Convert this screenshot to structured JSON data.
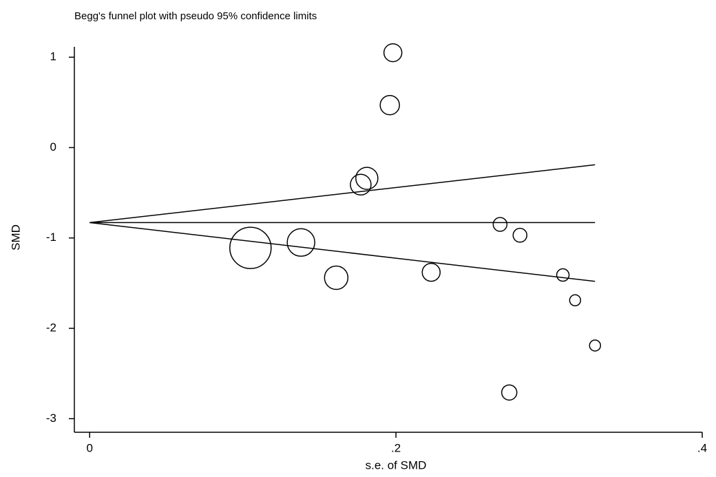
{
  "chart_data": {
    "type": "scatter",
    "title": "Begg's funnel plot with pseudo 95% confidence limits",
    "x_label": "s.e. of SMD",
    "y_label": "SMD",
    "xlim": [
      -0.01,
      0.4
    ],
    "ylim": [
      -3.15,
      1.1
    ],
    "xticks": [
      {
        "value": 0,
        "label": "0"
      },
      {
        "value": 0.2,
        "label": ".2"
      },
      {
        "value": 0.4,
        "label": ".4"
      }
    ],
    "yticks": [
      -3,
      -2,
      -1,
      0,
      1
    ],
    "color": "#000000",
    "series": [
      {
        "x": [
          0.198,
          0.196,
          0.181,
          0.177,
          0.268,
          0.281,
          0.105,
          0.138,
          0.161,
          0.223,
          0.309,
          0.317,
          0.33,
          0.274
        ],
        "values": [
          1.05,
          0.47,
          -0.34,
          -0.41,
          -0.85,
          -0.97,
          -1.11,
          -1.05,
          -1.44,
          -1.38,
          -1.41,
          -1.69,
          -2.19,
          -2.71
        ],
        "sizes": [
          13,
          14,
          16,
          15,
          10,
          10,
          30,
          20,
          17,
          13,
          9,
          8,
          8,
          11
        ]
      }
    ],
    "lines": [
      {
        "x": [
          0,
          0.33
        ],
        "values": [
          -0.83,
          -0.19
        ]
      },
      {
        "x": [
          0,
          0.33
        ],
        "values": [
          -0.83,
          -0.83
        ]
      },
      {
        "x": [
          0,
          0.33
        ],
        "values": [
          -0.83,
          -1.48
        ]
      }
    ]
  }
}
